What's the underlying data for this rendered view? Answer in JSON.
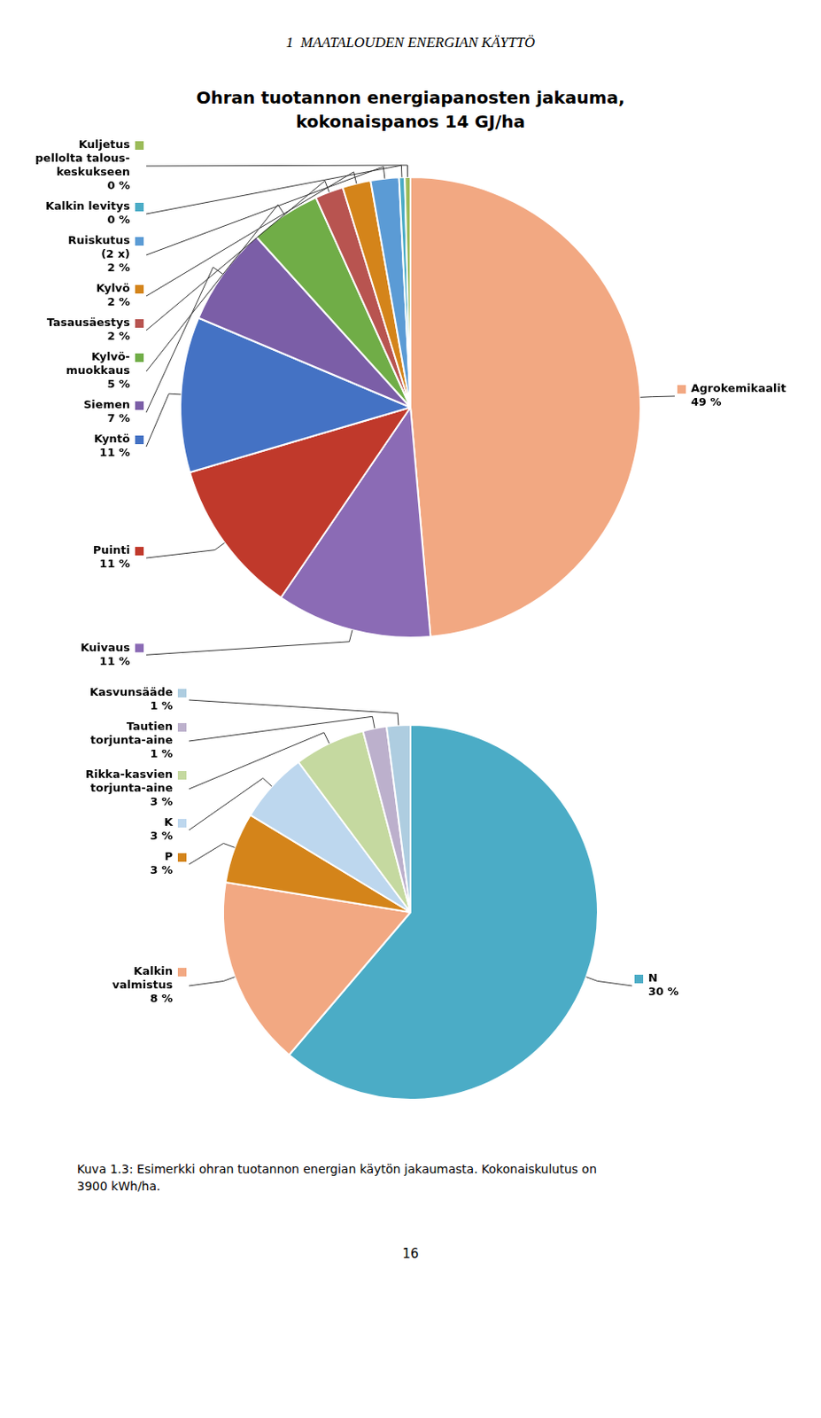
{
  "header": "1  MAATALOUDEN ENERGIAN KÄYTTÖ",
  "title": [
    "Ohran tuotannon energiapanosten jakauma,",
    "kokonaispanos 14 GJ/ha"
  ],
  "caption": [
    "Kuva 1.3: Esimerkki ohran tuotannon energian käytön jakaumasta. Kokonaiskulutus on",
    "3900 kWh/ha."
  ],
  "page_number": "16",
  "chart_data": [
    {
      "type": "pie",
      "categories": [
        "Agrokemikaalit",
        "Kuivaus",
        "Puinti",
        "Kyntö",
        "Siemen",
        [
          "Kylvö-",
          "muokkaus"
        ],
        "Tasausäestys",
        "Kylvö",
        [
          "Ruiskutus",
          "(2 x)"
        ],
        "Kalkin levitys",
        [
          "Kuljetus",
          "pellolta talous-",
          "keskukseen"
        ]
      ],
      "values": [
        49,
        11,
        11,
        11,
        7,
        5,
        2,
        2,
        2,
        0.4,
        0.4
      ],
      "value_labels": [
        "49 %",
        "11 %",
        "11 %",
        "11 %",
        "7 %",
        "5 %",
        "2 %",
        "2 %",
        "2 %",
        "0 %",
        "0 %"
      ],
      "colors": [
        "#F2A882",
        "#8B6BB5",
        "#C0392B",
        "#4472C4",
        "#7B5EA7",
        "#70AD47",
        "#B85450",
        "#D4841A",
        "#5B9BD5",
        "#4BACC6",
        "#9BBB59"
      ],
      "data_labels": true
    },
    {
      "type": "pie",
      "categories": [
        "N",
        [
          "Kalkin",
          "valmistus"
        ],
        "P",
        "K",
        [
          "Rikka-kasvien",
          "torjunta-aine"
        ],
        [
          "Tautien",
          "torjunta-aine"
        ],
        "Kasvunsääde"
      ],
      "values": [
        30,
        8,
        3,
        3,
        3,
        1,
        1
      ],
      "value_labels": [
        "30 %",
        "8 %",
        "3 %",
        "3 %",
        "3 %",
        "1 %",
        "1 %"
      ],
      "colors": [
        "#4BACC6",
        "#F2A882",
        "#D4841A",
        "#BDD7EE",
        "#C5D9A0",
        "#BCB0CC",
        "#AECDE0"
      ],
      "data_labels": true
    }
  ]
}
